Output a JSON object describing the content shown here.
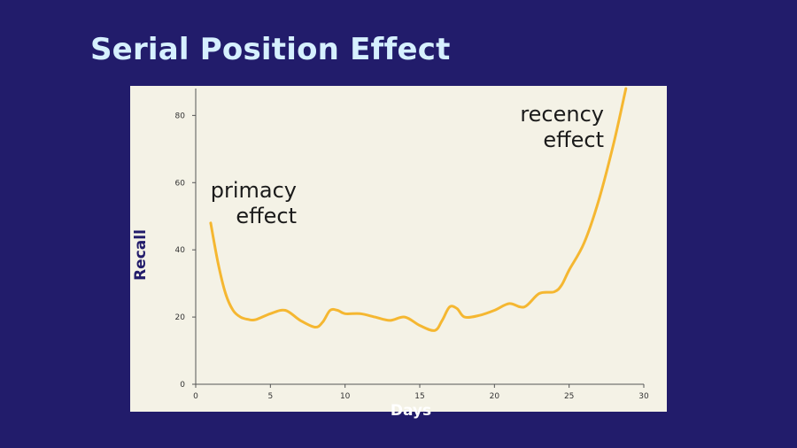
{
  "slide": {
    "title": "Serial Position Effect"
  },
  "chart_data": {
    "type": "line",
    "xlabel": "Days",
    "ylabel": "Recall",
    "xlim": [
      0,
      30
    ],
    "ylim": [
      0,
      88
    ],
    "xticks": [
      0,
      5,
      10,
      15,
      20,
      25,
      30
    ],
    "yticks": [
      0,
      20,
      40,
      60,
      80
    ],
    "grid": false,
    "line_color": "#f5b731",
    "series": [
      {
        "x": [
          1,
          1.5,
          2,
          2.5,
          3,
          3.5,
          4,
          5,
          6,
          7,
          8,
          8.5,
          9,
          9.5,
          10,
          11,
          12,
          13,
          14,
          15,
          16,
          16.5,
          17,
          17.5,
          18,
          19,
          20,
          21,
          22,
          23,
          24,
          24.5,
          25,
          26,
          27,
          28,
          28.8
        ],
        "y": [
          48,
          36,
          27,
          22,
          20,
          19.3,
          19.2,
          21,
          22,
          19,
          17,
          18.5,
          22,
          22,
          21,
          21,
          20,
          19,
          20,
          17.5,
          16,
          19,
          23,
          22.5,
          20,
          20.5,
          22,
          24,
          23,
          27,
          27.5,
          29.5,
          34,
          42,
          55,
          72,
          88
        ]
      }
    ],
    "annotations": [
      {
        "lines": [
          "primacy",
          "effect"
        ]
      },
      {
        "lines": [
          "recency",
          "effect"
        ]
      }
    ]
  }
}
